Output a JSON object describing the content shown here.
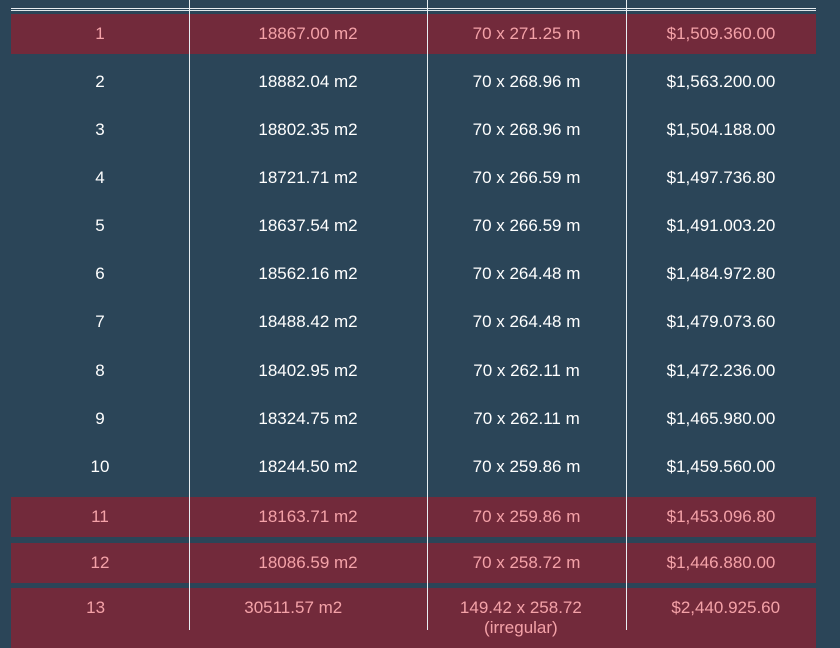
{
  "colors": {
    "background": "#2b4558",
    "highlight_row": "#722a3b",
    "highlight_text": "#f4a2a8",
    "text": "#ffffff"
  },
  "rows": [
    {
      "lot": "1",
      "area": "18867.00 m2",
      "dimensions": "70 x 271.25 m",
      "price": "$1,509.360.00",
      "highlighted": true
    },
    {
      "lot": "2",
      "area": "18882.04 m2",
      "dimensions": "70 x 268.96 m",
      "price": "$1,563.200.00",
      "highlighted": false
    },
    {
      "lot": "3",
      "area": "18802.35 m2",
      "dimensions": "70 x 268.96 m",
      "price": "$1,504.188.00",
      "highlighted": false
    },
    {
      "lot": "4",
      "area": "18721.71 m2",
      "dimensions": "70 x 266.59 m",
      "price": "$1,497.736.80",
      "highlighted": false
    },
    {
      "lot": "5",
      "area": "18637.54 m2",
      "dimensions": "70 x 266.59 m",
      "price": "$1,491.003.20",
      "highlighted": false
    },
    {
      "lot": "6",
      "area": "18562.16 m2",
      "dimensions": "70 x 264.48 m",
      "price": "$1,484.972.80",
      "highlighted": false
    },
    {
      "lot": "7",
      "area": "18488.42 m2",
      "dimensions": "70 x 264.48 m",
      "price": "$1,479.073.60",
      "highlighted": false
    },
    {
      "lot": "8",
      "area": "18402.95 m2",
      "dimensions": "70 x 262.11 m",
      "price": "$1,472.236.00",
      "highlighted": false
    },
    {
      "lot": "9",
      "area": "18324.75 m2",
      "dimensions": "70 x 262.11 m",
      "price": "$1,465.980.00",
      "highlighted": false
    },
    {
      "lot": "10",
      "area": "18244.50 m2",
      "dimensions": "70 x 259.86 m",
      "price": "$1,459.560.00",
      "highlighted": false
    },
    {
      "lot": "11",
      "area": "18163.71 m2",
      "dimensions": "70 x 259.86 m",
      "price": "$1,453.096.80",
      "highlighted": true
    },
    {
      "lot": "12",
      "area": "18086.59 m2",
      "dimensions": "70 x 258.72 m",
      "price": "$1,446.880.00",
      "highlighted": true
    },
    {
      "lot": "13",
      "area": "30511.57 m2",
      "dimensions": "149.42 x 258.72 (irregular)",
      "price": "$2,440.925.60",
      "highlighted": true
    }
  ]
}
